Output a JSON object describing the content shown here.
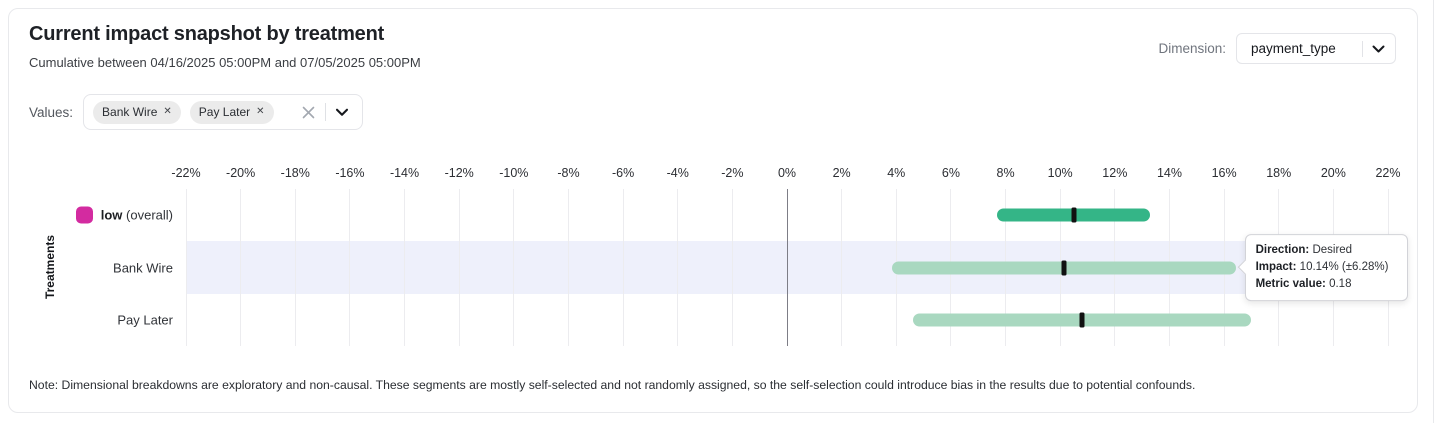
{
  "header": {
    "title": "Current impact snapshot by treatment",
    "subtitle": "Cumulative between 04/16/2025 05:00PM and 07/05/2025 05:00PM"
  },
  "dimension_selector": {
    "label": "Dimension:",
    "selected_value": "payment_type",
    "chevron_icon": "chevron-down"
  },
  "values_selector": {
    "label": "Values:",
    "chips": [
      {
        "label": "Bank Wire",
        "remove_icon": "x"
      },
      {
        "label": "Pay Later",
        "remove_icon": "x"
      }
    ],
    "clear_icon": "x",
    "chevron_icon": "chevron-down"
  },
  "chart_data": {
    "type": "range-bar",
    "orientation": "horizontal",
    "ylabel": "Treatments",
    "x_axis": {
      "min": -22,
      "max": 22,
      "tick_step": 2,
      "unit": "%",
      "tick_labels": [
        "-22%",
        "-20%",
        "-18%",
        "-16%",
        "-14%",
        "-12%",
        "-10%",
        "-8%",
        "-6%",
        "-4%",
        "-2%",
        "0%",
        "2%",
        "4%",
        "6%",
        "8%",
        "10%",
        "12%",
        "14%",
        "16%",
        "18%",
        "20%",
        "22%"
      ]
    },
    "grid": true,
    "zero_line_color": "#7d7d86",
    "highlight_band_color": "#eef0fb",
    "marker_color": "#111111",
    "rows": [
      {
        "label": "low",
        "label_suffix": "(overall)",
        "swatch_color": "#d32ba0",
        "low_pct": 7.7,
        "impact_pct": 10.5,
        "high_pct": 13.3,
        "bar_color": "#34b587",
        "highlighted": false
      },
      {
        "label": "Bank Wire",
        "low_pct": 3.86,
        "impact_pct": 10.14,
        "high_pct": 16.42,
        "bar_color": "#a9d8c0",
        "highlighted": true
      },
      {
        "label": "Pay Later",
        "low_pct": 4.6,
        "impact_pct": 10.8,
        "high_pct": 17.0,
        "bar_color": "#a9d8c0",
        "highlighted": false
      }
    ]
  },
  "tooltip": {
    "anchor_row": "Bank Wire",
    "lines": [
      {
        "label": "Direction:",
        "value": "Desired"
      },
      {
        "label": "Impact:",
        "value": "10.14% (±6.28%)"
      },
      {
        "label": "Metric value:",
        "value": "0.18"
      }
    ]
  },
  "note": "Note: Dimensional breakdowns are exploratory and non-causal. These segments are mostly self-selected and not randomly assigned, so the self-selection could introduce bias in the results due to potential confounds."
}
